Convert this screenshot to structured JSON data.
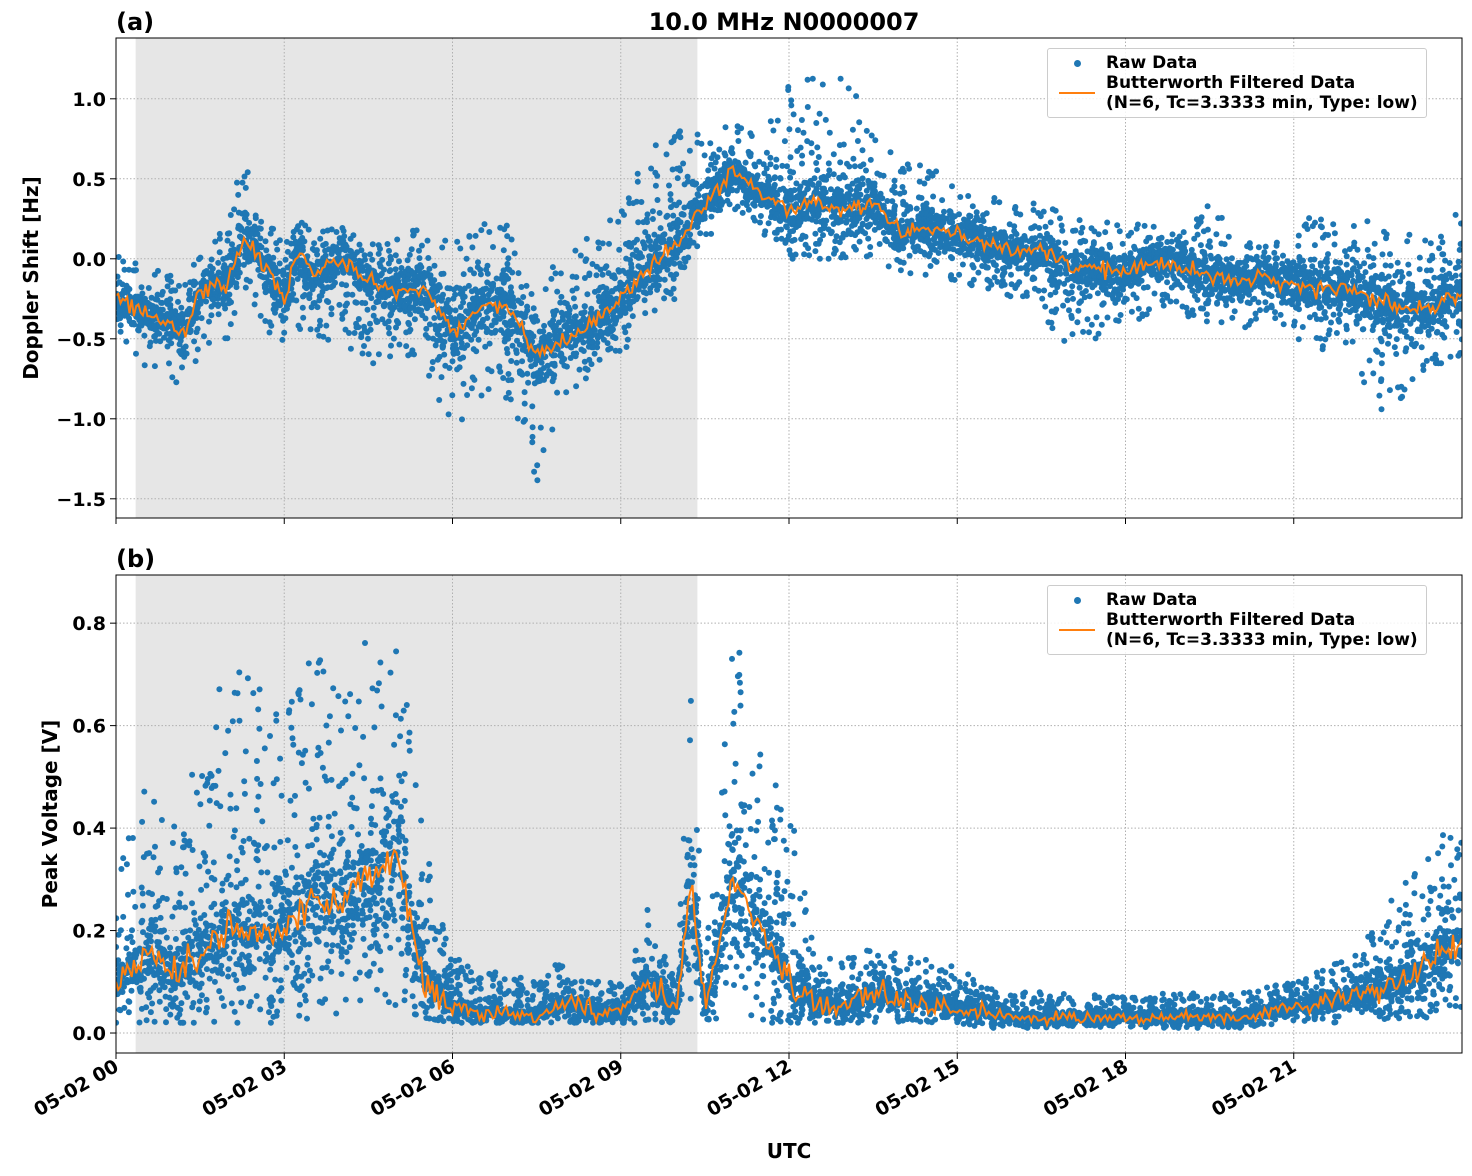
{
  "figure_title": "10.0 MHz N0000007",
  "colors": {
    "raw": "#1f77b4",
    "filtered": "#ff7f0e",
    "shade": "#e6e6e6"
  },
  "xaxis": {
    "label": "UTC",
    "range": [
      "05-02 00:00",
      "05-03 00:00"
    ],
    "ticks": [
      "05-02 00",
      "05-02 03",
      "05-02 06",
      "05-02 09",
      "05-02 12",
      "05-02 15",
      "05-02 18",
      "05-02 21"
    ]
  },
  "legend": {
    "raw": "Raw Data",
    "filtered_line1": "Butterworth Filtered Data",
    "filtered_line2": "(N=6, Tc=3.3333 min, Type: low)",
    "placement": "top-right"
  },
  "chart_data": [
    {
      "panel": "(a)",
      "type": "scatter+line",
      "ylabel": "Doppler Shift [Hz]",
      "ylim": [
        -1.62,
        1.38
      ],
      "yticks": [
        "1.0",
        "0.5",
        "0.0",
        "−0.5",
        "−1.0",
        "−1.5"
      ],
      "ytick_values": [
        1.0,
        0.5,
        0.0,
        -0.5,
        -1.0,
        -1.5
      ],
      "grid": true,
      "shaded_interval": [
        "05-02 00:21",
        "05-02 10:22"
      ],
      "x": [
        "00:00",
        "00:30",
        "01:00",
        "01:15",
        "01:30",
        "02:00",
        "02:15",
        "02:30",
        "03:00",
        "03:15",
        "03:30",
        "04:00",
        "04:30",
        "05:00",
        "05:30",
        "06:00",
        "06:30",
        "07:00",
        "07:30",
        "08:00",
        "08:30",
        "09:00",
        "09:30",
        "10:00",
        "10:30",
        "11:00",
        "11:30",
        "12:00",
        "12:30",
        "13:00",
        "13:30",
        "14:00",
        "14:30",
        "15:00",
        "15:30",
        "16:00",
        "16:30",
        "17:00",
        "17:30",
        "18:00",
        "18:30",
        "19:00",
        "19:30",
        "20:00",
        "20:30",
        "21:00",
        "21:30",
        "22:00",
        "22:30",
        "23:00",
        "23:30",
        "24:00"
      ],
      "filtered": [
        -0.25,
        -0.35,
        -0.4,
        -0.45,
        -0.2,
        -0.15,
        0.12,
        0.05,
        -0.25,
        0.05,
        -0.1,
        0.0,
        -0.15,
        -0.2,
        -0.2,
        -0.45,
        -0.3,
        -0.3,
        -0.6,
        -0.5,
        -0.4,
        -0.25,
        -0.05,
        0.1,
        0.35,
        0.55,
        0.4,
        0.3,
        0.35,
        0.3,
        0.35,
        0.15,
        0.2,
        0.15,
        0.1,
        0.05,
        0.05,
        -0.05,
        -0.05,
        -0.1,
        0.0,
        -0.05,
        -0.1,
        -0.15,
        -0.1,
        -0.15,
        -0.2,
        -0.2,
        -0.25,
        -0.3,
        -0.3,
        -0.2
      ],
      "raw_low": [
        -0.5,
        -0.7,
        -0.75,
        -0.85,
        -0.6,
        -0.5,
        -0.2,
        -0.3,
        -0.7,
        -0.5,
        -0.6,
        -0.5,
        -0.7,
        -0.6,
        -0.7,
        -1.1,
        -0.9,
        -0.9,
        -1.4,
        -0.9,
        -0.7,
        -0.6,
        -0.4,
        -0.3,
        0.1,
        0.3,
        0.15,
        0.0,
        0.0,
        0.0,
        0.0,
        -0.1,
        -0.1,
        -0.15,
        -0.2,
        -0.25,
        -0.3,
        -0.7,
        -0.5,
        -0.4,
        -0.35,
        -0.35,
        -0.4,
        -0.45,
        -0.4,
        -0.5,
        -0.6,
        -0.55,
        -1.0,
        -0.85,
        -0.7,
        -0.6
      ],
      "raw_high": [
        0.05,
        -0.05,
        -0.1,
        -0.15,
        0.1,
        0.2,
        0.65,
        0.4,
        0.1,
        0.3,
        0.25,
        0.2,
        0.1,
        0.15,
        0.2,
        0.1,
        0.25,
        0.25,
        -0.1,
        0.0,
        0.2,
        0.3,
        0.7,
        0.8,
        0.8,
        0.85,
        0.75,
        1.1,
        1.15,
        1.2,
        0.8,
        0.6,
        0.6,
        0.45,
        0.45,
        0.35,
        0.35,
        0.3,
        0.25,
        0.2,
        0.25,
        0.2,
        0.4,
        0.1,
        0.1,
        0.25,
        0.3,
        0.3,
        0.2,
        0.2,
        0.1,
        0.4
      ]
    },
    {
      "panel": "(b)",
      "type": "scatter+line",
      "ylabel": "Peak Voltage [V]",
      "ylim": [
        -0.039,
        0.894
      ],
      "yticks": [
        "0.0",
        "0.2",
        "0.4",
        "0.6",
        "0.8"
      ],
      "ytick_values": [
        0.0,
        0.2,
        0.4,
        0.6,
        0.8
      ],
      "grid": true,
      "shaded_interval": [
        "05-02 00:21",
        "05-02 10:22"
      ],
      "x": [
        "00:00",
        "00:30",
        "01:00",
        "01:30",
        "02:00",
        "02:30",
        "03:00",
        "03:30",
        "04:00",
        "04:30",
        "05:00",
        "05:30",
        "06:00",
        "06:30",
        "07:00",
        "07:30",
        "08:00",
        "08:30",
        "09:00",
        "09:30",
        "10:00",
        "10:15",
        "10:30",
        "11:00",
        "11:30",
        "12:00",
        "12:30",
        "13:00",
        "13:30",
        "14:00",
        "14:30",
        "15:00",
        "15:30",
        "16:00",
        "17:00",
        "18:00",
        "19:00",
        "20:00",
        "21:00",
        "22:00",
        "23:00",
        "23:30",
        "24:00"
      ],
      "filtered": [
        0.1,
        0.15,
        0.12,
        0.15,
        0.2,
        0.2,
        0.2,
        0.25,
        0.25,
        0.3,
        0.35,
        0.1,
        0.05,
        0.04,
        0.04,
        0.03,
        0.06,
        0.04,
        0.04,
        0.1,
        0.05,
        0.3,
        0.05,
        0.3,
        0.2,
        0.1,
        0.06,
        0.05,
        0.08,
        0.06,
        0.06,
        0.05,
        0.04,
        0.03,
        0.03,
        0.03,
        0.03,
        0.03,
        0.05,
        0.07,
        0.1,
        0.15,
        0.18
      ],
      "raw_low": [
        0.02,
        0.02,
        0.02,
        0.02,
        0.02,
        0.02,
        0.02,
        0.03,
        0.03,
        0.04,
        0.05,
        0.03,
        0.02,
        0.02,
        0.02,
        0.02,
        0.02,
        0.02,
        0.02,
        0.02,
        0.02,
        0.02,
        0.02,
        0.03,
        0.02,
        0.02,
        0.02,
        0.02,
        0.02,
        0.02,
        0.02,
        0.02,
        0.01,
        0.01,
        0.01,
        0.01,
        0.01,
        0.01,
        0.02,
        0.02,
        0.03,
        0.03,
        0.04
      ],
      "raw_high": [
        0.3,
        0.5,
        0.4,
        0.55,
        0.75,
        0.7,
        0.6,
        0.8,
        0.65,
        0.78,
        0.8,
        0.4,
        0.15,
        0.12,
        0.12,
        0.1,
        0.15,
        0.1,
        0.1,
        0.25,
        0.1,
        0.68,
        0.12,
        0.8,
        0.6,
        0.45,
        0.15,
        0.15,
        0.18,
        0.15,
        0.15,
        0.13,
        0.1,
        0.08,
        0.08,
        0.07,
        0.08,
        0.08,
        0.1,
        0.15,
        0.3,
        0.4,
        0.4
      ]
    }
  ]
}
